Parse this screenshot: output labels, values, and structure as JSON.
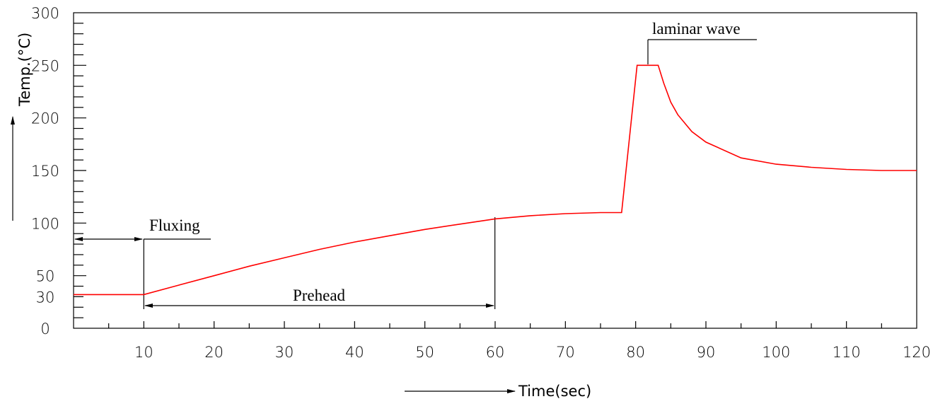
{
  "chart_data": {
    "type": "line",
    "xlabel": "Time(sec)",
    "ylabel": "Temp.(°C)",
    "xlim": [
      0,
      120
    ],
    "ylim": [
      0,
      300
    ],
    "x_tick_labels": [
      "10",
      "20",
      "30",
      "40",
      "50",
      "60",
      "70",
      "80",
      "90",
      "100",
      "110",
      "120"
    ],
    "y_tick_labels": [
      "0",
      "30",
      "50",
      "100",
      "150",
      "200",
      "250",
      "300"
    ],
    "series": [
      {
        "color": "#ff0000",
        "x": [
          0,
          10,
          15,
          20,
          25,
          30,
          35,
          40,
          45,
          50,
          55,
          60,
          65,
          70,
          75,
          78,
          80.2,
          83.2,
          84,
          85,
          86,
          88,
          90,
          95,
          100,
          105,
          110,
          115,
          120
        ],
        "y": [
          32,
          32,
          41,
          50,
          59,
          67,
          75,
          82,
          88,
          94,
          99,
          104,
          107,
          109,
          110,
          110,
          250,
          250,
          233,
          215,
          203,
          187,
          177,
          162,
          156,
          153,
          151,
          150,
          150
        ]
      }
    ],
    "annotations": [
      {
        "text": "Fluxing",
        "from_x": 0,
        "to_x": 10,
        "y": 85
      },
      {
        "text": "Prehead",
        "from_x": 10,
        "to_x": 60,
        "y": 23
      },
      {
        "text": "laminar wave",
        "x": 81.6,
        "y": 250
      }
    ],
    "grid": false,
    "legend": "none"
  }
}
